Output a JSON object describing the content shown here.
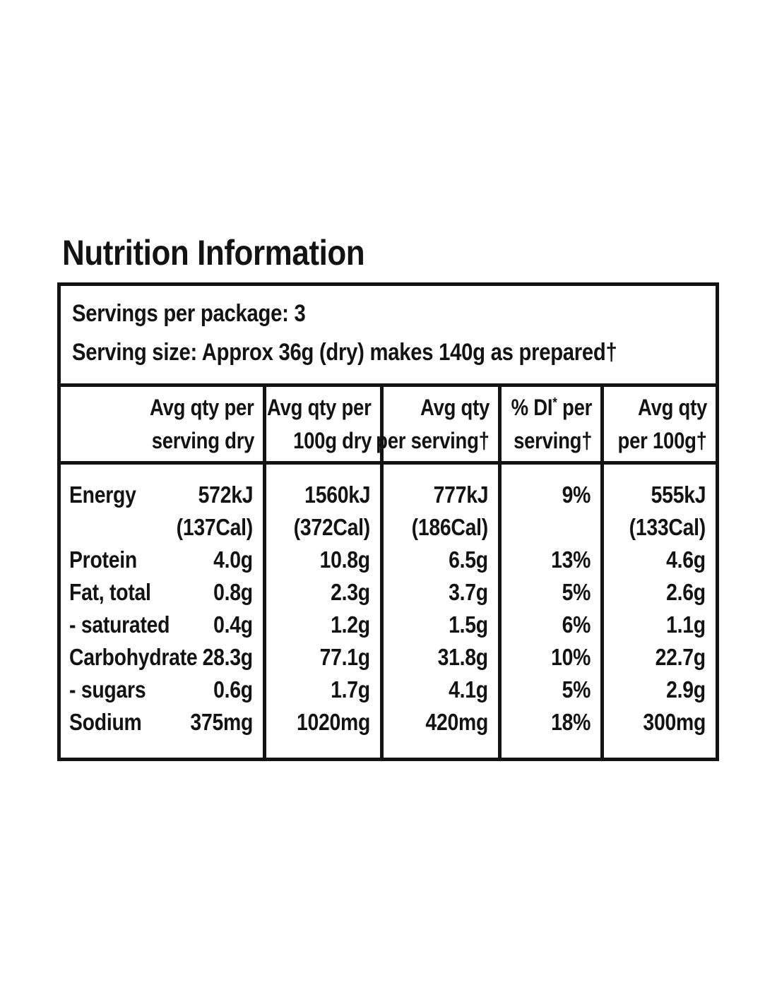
{
  "colors": {
    "text": "#131313",
    "border": "#131313",
    "background": "#ffffff"
  },
  "title": "Nutrition Information",
  "serving_info": {
    "line1": "Servings per package: 3",
    "line2": "Serving size: Approx 36g (dry) makes 140g as prepared†"
  },
  "header": {
    "col1": {
      "line1": "Avg qty per",
      "line2": "serving dry"
    },
    "col2": {
      "line1": "Avg qty per",
      "line2": "100g dry"
    },
    "col3": {
      "line1": "Avg qty",
      "line2": "per serving†"
    },
    "col4": {
      "line1_prefix": "% DI",
      "line1_asterisk": "*",
      "line1_suffix": " per",
      "line2": "serving†"
    },
    "col5": {
      "line1": "Avg qty",
      "line2": "per 100g†"
    }
  },
  "rows": [
    {
      "nutrient": "Energy",
      "serving_dry": "572kJ",
      "dry_100g": "1560kJ",
      "per_serving": "777kJ",
      "di": "9%",
      "per_100g": "555kJ"
    },
    {
      "nutrient": "",
      "serving_dry": "(137Cal)",
      "dry_100g": "(372Cal)",
      "per_serving": "(186Cal)",
      "di": "",
      "per_100g": "(133Cal)"
    },
    {
      "nutrient": "Protein",
      "serving_dry": "4.0g",
      "dry_100g": "10.8g",
      "per_serving": "6.5g",
      "di": "13%",
      "per_100g": "4.6g"
    },
    {
      "nutrient": "Fat, total",
      "serving_dry": "0.8g",
      "dry_100g": "2.3g",
      "per_serving": "3.7g",
      "di": "5%",
      "per_100g": "2.6g"
    },
    {
      "nutrient": "- saturated",
      "serving_dry": "0.4g",
      "dry_100g": "1.2g",
      "per_serving": "1.5g",
      "di": "6%",
      "per_100g": "1.1g"
    },
    {
      "nutrient": "Carbohydrate",
      "serving_dry": "28.3g",
      "dry_100g": "77.1g",
      "per_serving": "31.8g",
      "di": "10%",
      "per_100g": "22.7g"
    },
    {
      "nutrient": "- sugars",
      "serving_dry": "0.6g",
      "dry_100g": "1.7g",
      "per_serving": "4.1g",
      "di": "5%",
      "per_100g": "2.9g"
    },
    {
      "nutrient": "Sodium",
      "serving_dry": "375mg",
      "dry_100g": "1020mg",
      "per_serving": "420mg",
      "di": "18%",
      "per_100g": "300mg"
    }
  ]
}
